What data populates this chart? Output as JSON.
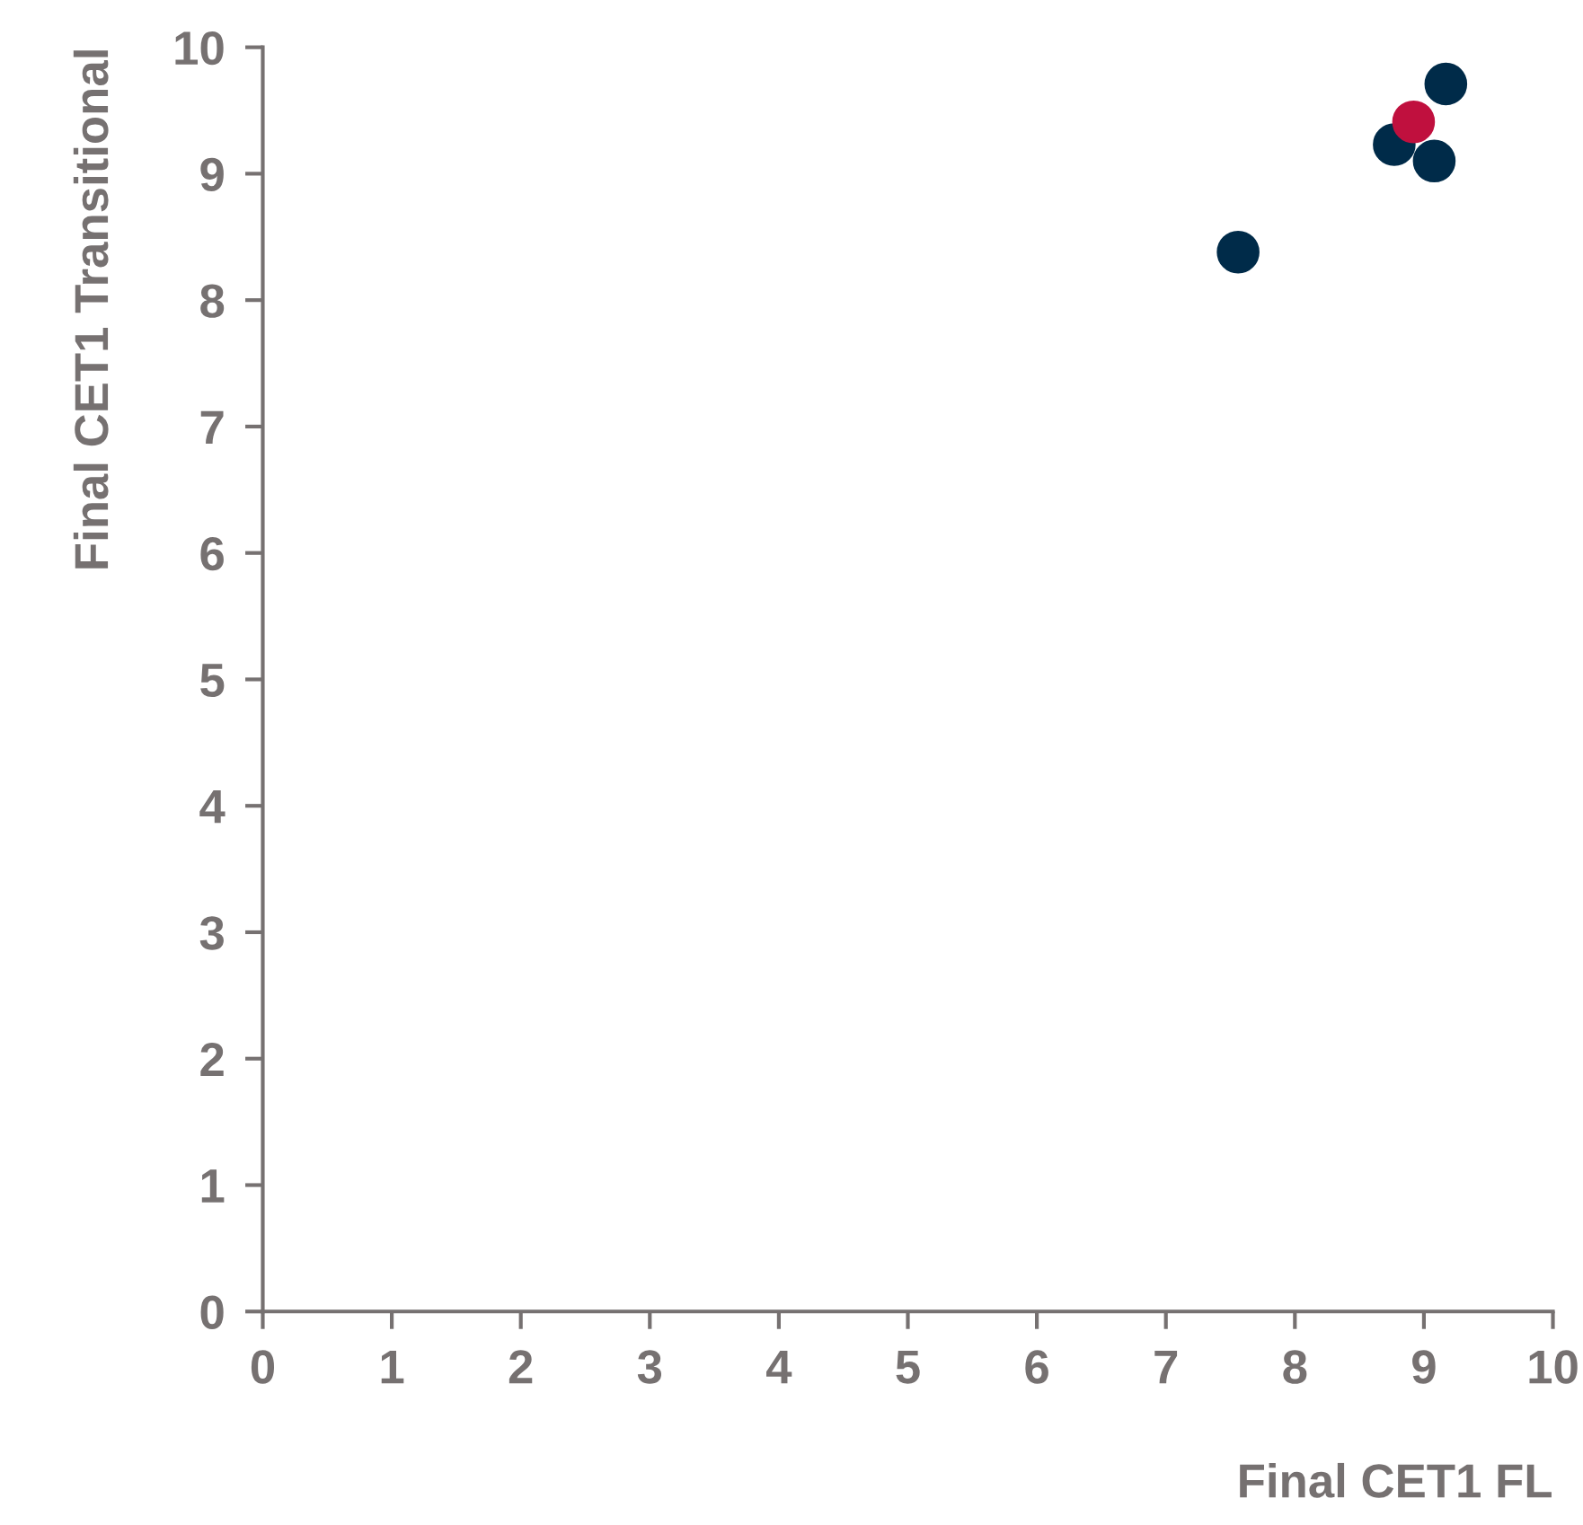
{
  "chart_data": {
    "type": "scatter",
    "xlabel": "Final CET1 FL",
    "ylabel": "Final CET1 Transitional",
    "series": [
      {
        "color": "#002b49",
        "x": [
          7.56,
          8.77,
          9.17,
          9.08
        ],
        "values": [
          8.38,
          9.23,
          9.71,
          9.1
        ]
      },
      {
        "color": "#c0103e",
        "x": [
          8.92
        ],
        "values": [
          9.41
        ]
      }
    ],
    "xlim": [
      0,
      10
    ],
    "ylim": [
      0,
      10
    ],
    "xticks": [
      0,
      1,
      2,
      3,
      4,
      5,
      6,
      7,
      8,
      9,
      10
    ],
    "yticks": [
      0,
      1,
      2,
      3,
      4,
      5,
      6,
      7,
      8,
      9,
      10
    ],
    "grid": false,
    "marker": "circle"
  }
}
